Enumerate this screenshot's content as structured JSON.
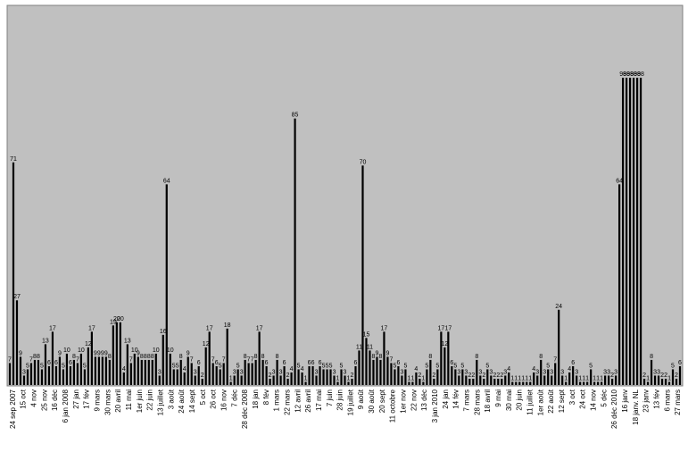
{
  "chart_data": {
    "type": "bar",
    "title": "",
    "xlabel": "",
    "ylabel": "",
    "ylim": [
      0,
      100
    ],
    "grid": false,
    "legend": "none",
    "colors": {
      "plot_background": "#c0c0c0",
      "bar": "#000000",
      "frame": "#808080"
    },
    "values": [
      7,
      71,
      27,
      9,
      3,
      5,
      7,
      8,
      8,
      5,
      13,
      6,
      17,
      6,
      9,
      5,
      10,
      6,
      8,
      7,
      10,
      5,
      12,
      17,
      9,
      9,
      9,
      9,
      8,
      19,
      20,
      20,
      4,
      13,
      7,
      10,
      9,
      8,
      8,
      8,
      8,
      10,
      3,
      16,
      64,
      10,
      5,
      5,
      8,
      4,
      9,
      7,
      3,
      6,
      2,
      12,
      17,
      7,
      6,
      5,
      7,
      18,
      1,
      3,
      5,
      3,
      8,
      7,
      7,
      8,
      17,
      8,
      6,
      2,
      3,
      8,
      3,
      6,
      2,
      4,
      85,
      5,
      4,
      1,
      6,
      6,
      3,
      6,
      5,
      5,
      5,
      3,
      1,
      5,
      3,
      1,
      2,
      6,
      11,
      70,
      15,
      11,
      8,
      9,
      8,
      17,
      9,
      7,
      5,
      6,
      3,
      5,
      1,
      1,
      4,
      2,
      1,
      5,
      8,
      2,
      5,
      17,
      12,
      17,
      6,
      5,
      3,
      5,
      3,
      2,
      2,
      8,
      3,
      2,
      5,
      3,
      2,
      2,
      2,
      3,
      4,
      1,
      1,
      1,
      1,
      1,
      1,
      4,
      3,
      8,
      3,
      5,
      3,
      7,
      24,
      3,
      1,
      4,
      6,
      3,
      1,
      1,
      1,
      5,
      1,
      1,
      1,
      3,
      3,
      2,
      3,
      64,
      98,
      98,
      98,
      98,
      98,
      98,
      2,
      1,
      8,
      3,
      3,
      2,
      2,
      1,
      5,
      2,
      6
    ],
    "x_tick_labels": [
      "24 sep 2007",
      "15 oct",
      "4 nov",
      "25 nov",
      "16 déc",
      "6 jan 2008",
      "27 jan",
      "17 fév",
      "9 mars",
      "30 mars",
      "20 avril",
      "11 mai",
      "1er juin",
      "22 juin",
      "13 juillet",
      "3 août",
      "24 août",
      "14 sept",
      "5 oct",
      "26 oct",
      "16 nov",
      "7 déc",
      "28 déc 2008",
      "18 jan",
      "8 fév",
      "1 mars",
      "22 mars",
      "12 avril",
      "26 avril",
      "17 mai",
      "7 juin",
      "28 juin",
      "19 juillet",
      "9 août",
      "30 août",
      "20 sept",
      "11 octobre",
      "1er nov",
      "22 nov",
      "13 déc",
      "3 jan 2010",
      "24 jan",
      "14 fév",
      "7 mars",
      "28 mars",
      "18 avril",
      "9 mai",
      "30 mai",
      "20 juin",
      "11 juillet",
      "1er août",
      "22 août",
      "12 sept",
      "3 oct",
      "24 oct",
      "14 nov",
      "5 déc",
      "26 déc 2010",
      "16 janv",
      "18 janv. NL",
      "23 janv",
      "13 fév",
      "6 mars",
      "27 mars"
    ],
    "data_labels": [
      "7",
      "71",
      "27",
      "9",
      "3",
      "5",
      "7",
      "8",
      "8",
      "5",
      "13",
      "6",
      "17",
      "6",
      "9",
      "5",
      "10",
      "6",
      "8",
      "7",
      "10",
      "5",
      "12",
      "17",
      "9",
      "9",
      "9",
      "9",
      "8",
      "19",
      "20",
      "20",
      "4",
      "13",
      "7",
      "10",
      "9",
      "8",
      "8",
      "8",
      "8",
      "10",
      "3",
      "16",
      "64",
      "10",
      "5",
      "5",
      "8",
      "4",
      "9",
      "7",
      "3",
      "6",
      "2",
      "12",
      "17",
      "7",
      "6",
      "5",
      "7",
      "18",
      "1",
      "3",
      "5",
      "3",
      "8",
      "7",
      "7",
      "8",
      "17",
      "8",
      "6",
      "2",
      "3",
      "8",
      "3",
      "6",
      "2",
      "4",
      "85",
      "5",
      "4",
      "1",
      "6",
      "6",
      "3",
      "6",
      "5",
      "5",
      "5",
      "3",
      "1",
      "5",
      "3",
      "1",
      "2",
      "6",
      "11",
      "70",
      "15",
      "11",
      "8",
      "9",
      "8",
      "17",
      "9",
      "7",
      "5",
      "6",
      "3",
      "5",
      "1",
      "1",
      "4",
      "2",
      "1",
      "5",
      "8",
      "2",
      "5",
      "17",
      "12",
      "17",
      "6",
      "5",
      "3",
      "5",
      "3",
      "2",
      "2",
      "8",
      "3",
      "2",
      "5",
      "3",
      "2",
      "2",
      "2",
      "3",
      "4",
      "1",
      "1",
      "1",
      "1",
      "1",
      "1",
      "4",
      "3",
      "8",
      "3",
      "5",
      "3",
      "7",
      "24",
      "3",
      "1",
      "4",
      "6",
      "3",
      "1",
      "1",
      "1",
      "5",
      "1",
      "1",
      "1",
      "3",
      "3",
      "2",
      "3",
      "64",
      "98",
      "98",
      "98",
      "98",
      "98",
      "98",
      "2",
      "1",
      "8",
      "3",
      "3",
      "2",
      "2",
      "1",
      "5",
      "2",
      "6"
    ]
  }
}
